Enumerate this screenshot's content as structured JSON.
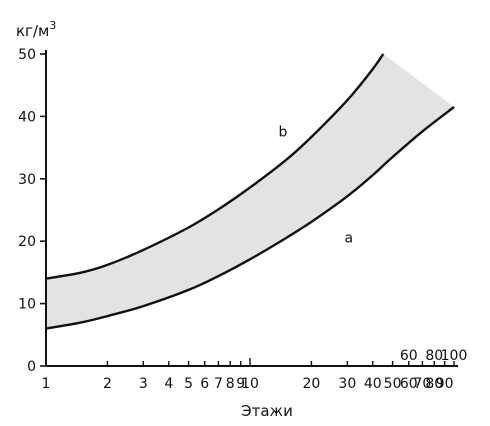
{
  "chart_data": {
    "type": "area",
    "ylabel_base": "кг/м",
    "ylabel_exp": "3",
    "xlabel": "Этажи",
    "x_scale": "log",
    "xlim": [
      1,
      100
    ],
    "ylim": [
      0,
      50
    ],
    "y_ticks": [
      0,
      10,
      20,
      30,
      40,
      50
    ],
    "x_ticks_bottom": [
      1,
      2,
      3,
      4,
      5,
      6,
      7,
      8,
      9,
      10,
      20,
      30,
      40,
      50,
      60,
      70,
      80,
      90
    ],
    "x_tick_labels_bottom": [
      "1",
      "2",
      "3",
      "4",
      "5",
      "6",
      "7",
      "8",
      "9",
      "10",
      "20",
      "30",
      "40",
      "50",
      "60",
      "70",
      "80",
      "90"
    ],
    "x_tick_labels_top": [
      "60",
      "80",
      "100"
    ],
    "x_tick_positions_top": [
      60,
      80,
      100
    ],
    "grid": false,
    "band_fill": "#e2e2e2",
    "series": [
      {
        "name": "b",
        "x": [
          1,
          1.5,
          2,
          3,
          5,
          7,
          10,
          15,
          20,
          30,
          40,
          45
        ],
        "y": [
          14,
          15,
          16.2,
          18.6,
          22.2,
          25.1,
          28.6,
          33,
          36.7,
          42.6,
          47.6,
          50
        ]
      },
      {
        "name": "a",
        "x": [
          1,
          1.5,
          2,
          3,
          5,
          7,
          10,
          15,
          20,
          30,
          40,
          50,
          70,
          100
        ],
        "y": [
          6,
          7,
          8,
          9.6,
          12.2,
          14.4,
          17.1,
          20.5,
          23.1,
          27.2,
          30.6,
          33.5,
          37.6,
          41.5
        ]
      }
    ]
  }
}
